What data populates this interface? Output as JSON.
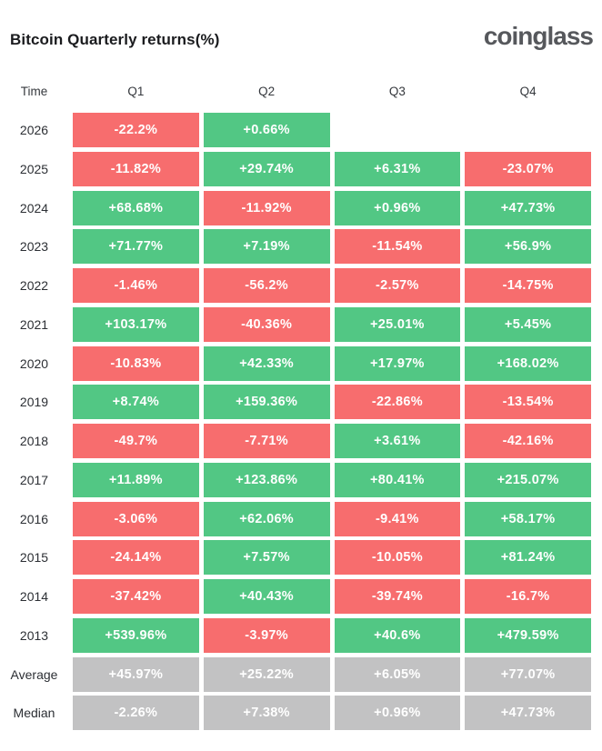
{
  "header": {
    "title": "Bitcoin Quarterly returns(%)",
    "logo": "coinglass"
  },
  "table": {
    "columns": [
      "Time",
      "Q1",
      "Q2",
      "Q3",
      "Q4"
    ]
  },
  "colors": {
    "positive": "#52c784",
    "negative": "#f76d6e",
    "neutral": "#c2c2c3",
    "cell_text": "#ffffff",
    "title": "#1a1b1e",
    "logo": "#56585c",
    "background": "#ffffff"
  },
  "chart_data": {
    "type": "heatmap",
    "title": "Bitcoin Quarterly returns(%)",
    "columns": [
      "Q1",
      "Q2",
      "Q3",
      "Q4"
    ],
    "row_axis_label": "Time",
    "value_format": "signed_percent",
    "cell_color_rule": "green if value > 0, red if value < 0, gray for Average/Median summary rows, blank if no data",
    "legend": "none",
    "rows": [
      {
        "label": "2026",
        "values": [
          -22.2,
          0.66,
          null,
          null
        ],
        "neutral": false
      },
      {
        "label": "2025",
        "values": [
          -11.82,
          29.74,
          6.31,
          -23.07
        ],
        "neutral": false
      },
      {
        "label": "2024",
        "values": [
          68.68,
          -11.92,
          0.96,
          47.73
        ],
        "neutral": false
      },
      {
        "label": "2023",
        "values": [
          71.77,
          7.19,
          -11.54,
          56.9
        ],
        "neutral": false
      },
      {
        "label": "2022",
        "values": [
          -1.46,
          -56.2,
          -2.57,
          -14.75
        ],
        "neutral": false
      },
      {
        "label": "2021",
        "values": [
          103.17,
          -40.36,
          25.01,
          5.45
        ],
        "neutral": false
      },
      {
        "label": "2020",
        "values": [
          -10.83,
          42.33,
          17.97,
          168.02
        ],
        "neutral": false
      },
      {
        "label": "2019",
        "values": [
          8.74,
          159.36,
          -22.86,
          -13.54
        ],
        "neutral": false
      },
      {
        "label": "2018",
        "values": [
          -49.7,
          -7.71,
          3.61,
          -42.16
        ],
        "neutral": false
      },
      {
        "label": "2017",
        "values": [
          11.89,
          123.86,
          80.41,
          215.07
        ],
        "neutral": false
      },
      {
        "label": "2016",
        "values": [
          -3.06,
          62.06,
          -9.41,
          58.17
        ],
        "neutral": false
      },
      {
        "label": "2015",
        "values": [
          -24.14,
          7.57,
          -10.05,
          81.24
        ],
        "neutral": false
      },
      {
        "label": "2014",
        "values": [
          -37.42,
          40.43,
          -39.74,
          -16.7
        ],
        "neutral": false
      },
      {
        "label": "2013",
        "values": [
          539.96,
          -3.97,
          40.6,
          479.59
        ],
        "neutral": false
      },
      {
        "label": "Average",
        "values": [
          45.97,
          25.22,
          6.05,
          77.07
        ],
        "neutral": true
      },
      {
        "label": "Median",
        "values": [
          -2.26,
          7.38,
          0.96,
          47.73
        ],
        "neutral": true
      }
    ]
  }
}
